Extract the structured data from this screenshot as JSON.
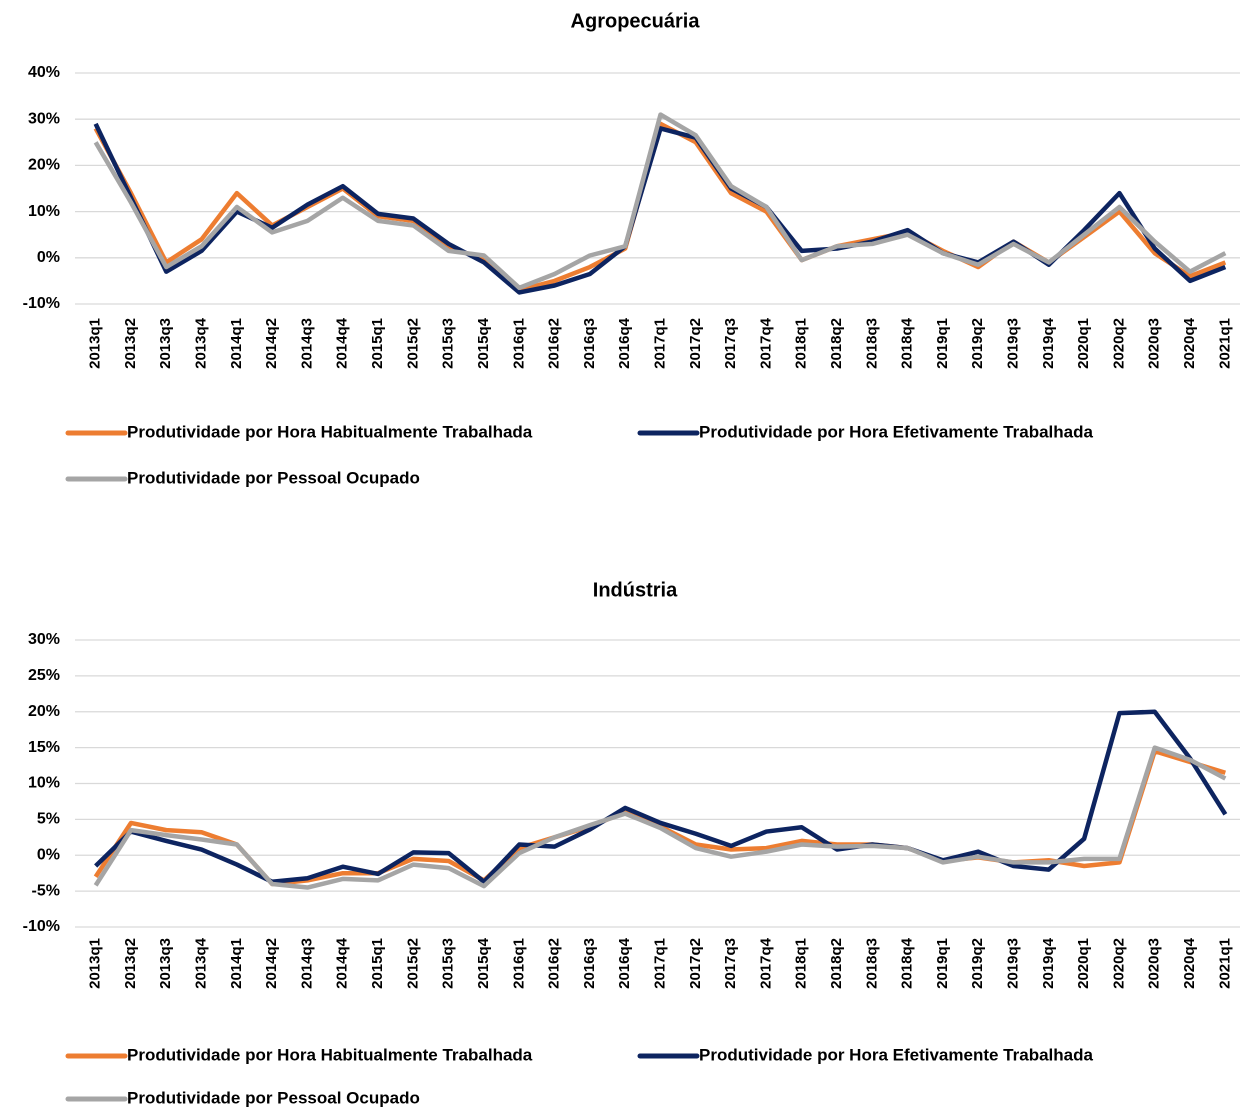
{
  "chart_data": [
    {
      "type": "line",
      "title": "Agropecuária",
      "categories": [
        "2013q1",
        "2013q2",
        "2013q3",
        "2013q4",
        "2014q1",
        "2014q2",
        "2014q3",
        "2014q4",
        "2015q1",
        "2015q2",
        "2015q3",
        "2015q4",
        "2016q1",
        "2016q2",
        "2016q3",
        "2016q4",
        "2017q1",
        "2017q2",
        "2017q3",
        "2017q4",
        "2018q1",
        "2018q2",
        "2018q3",
        "2018q4",
        "2019q1",
        "2019q2",
        "2019q3",
        "2019q4",
        "2020q1",
        "2020q2",
        "2020q3",
        "2020q4",
        "2021q1"
      ],
      "series": [
        {
          "name": "Produtividade por Hora Habitualmente Trabalhada",
          "color": "#ed7d31",
          "values": [
            28,
            14,
            -1,
            4,
            14,
            7,
            11,
            15,
            9,
            8,
            2,
            0,
            -7,
            -5,
            -2,
            2,
            29,
            25,
            14,
            10,
            -0.5,
            2.5,
            4,
            5.5,
            1.5,
            -2,
            3.5,
            -1,
            4.5,
            10,
            1,
            -4,
            -1
          ]
        },
        {
          "name": "Produtividade por Hora Efetivamente Trabalhada",
          "color": "#0d2460",
          "values": [
            29,
            13,
            -3,
            1.5,
            10,
            6.5,
            11.5,
            15.5,
            9.5,
            8.5,
            3,
            -1,
            -7.5,
            -6,
            -3.5,
            2.5,
            28,
            26,
            15,
            11,
            1.5,
            2,
            3.5,
            6,
            1,
            -1,
            3.5,
            -1.5,
            6,
            14,
            2,
            -5,
            -2
          ]
        },
        {
          "name": "Produtividade por Pessoal Ocupado",
          "color": "#a5a5a5",
          "values": [
            25,
            12,
            -2,
            2.5,
            11,
            5.5,
            8,
            13,
            8,
            7,
            1.5,
            0.5,
            -6.5,
            -3.5,
            0.5,
            2.5,
            31,
            26.5,
            15.5,
            11,
            -0.5,
            2.5,
            3,
            5,
            1,
            -1.5,
            3,
            -1,
            5,
            11,
            3.5,
            -3,
            1
          ]
        }
      ],
      "ylim": [
        -10,
        40
      ],
      "yticks": [
        {
          "value": -10,
          "label": "-10%"
        },
        {
          "value": 0,
          "label": "0%"
        },
        {
          "value": 10,
          "label": "10%"
        },
        {
          "value": 20,
          "label": "20%"
        },
        {
          "value": 30,
          "label": "30%"
        },
        {
          "value": 40,
          "label": "40%"
        }
      ],
      "grid": true
    },
    {
      "type": "line",
      "title": "Indústria",
      "categories": [
        "2013q1",
        "2013q2",
        "2013q3",
        "2013q4",
        "2014q1",
        "2014q2",
        "2014q3",
        "2014q4",
        "2015q1",
        "2015q2",
        "2015q3",
        "2015q4",
        "2016q1",
        "2016q2",
        "2016q3",
        "2016q4",
        "2017q1",
        "2017q2",
        "2017q3",
        "2017q4",
        "2018q1",
        "2018q2",
        "2018q3",
        "2018q4",
        "2019q1",
        "2019q2",
        "2019q3",
        "2019q4",
        "2020q1",
        "2020q2",
        "2020q3",
        "2020q4",
        "2021q1"
      ],
      "series": [
        {
          "name": "Produtividade por Hora Habitualmente Trabalhada",
          "color": "#ed7d31",
          "values": [
            -3,
            4.5,
            3.5,
            3.2,
            1.5,
            -4,
            -3.5,
            -2.5,
            -2.5,
            -0.5,
            -0.8,
            -3.5,
            1,
            2.5,
            4,
            6,
            4,
            1.5,
            0.8,
            1,
            2,
            1.5,
            1.5,
            1,
            -0.8,
            -0.3,
            -1,
            -0.7,
            -1.5,
            -1,
            14.5,
            13,
            11.5
          ]
        },
        {
          "name": "Produtividade por Hora Efetivamente Trabalhada",
          "color": "#0d2460",
          "values": [
            -1.5,
            3.3,
            2,
            0.8,
            -1.3,
            -3.7,
            -3.2,
            -1.6,
            -2.6,
            0.4,
            0.3,
            -3.7,
            1.5,
            1.2,
            3.6,
            6.6,
            4.5,
            3,
            1.3,
            3.3,
            3.9,
            0.8,
            1.5,
            1,
            -0.7,
            0.5,
            -1.5,
            -2,
            2.3,
            19.8,
            20,
            13.5,
            5.7
          ]
        },
        {
          "name": "Produtividade por Pessoal Ocupado",
          "color": "#a5a5a5",
          "values": [
            -4.2,
            3.5,
            2.8,
            2.2,
            1.5,
            -4,
            -4.5,
            -3.3,
            -3.5,
            -1.3,
            -1.8,
            -4.3,
            0.3,
            2.5,
            4.2,
            5.8,
            3.8,
            1,
            -0.2,
            0.5,
            1.5,
            1.2,
            1.3,
            1,
            -1,
            -0.2,
            -1,
            -1,
            -0.5,
            -0.5,
            15,
            13.3,
            10.7
          ]
        }
      ],
      "ylim": [
        -10,
        30
      ],
      "yticks": [
        {
          "value": -10,
          "label": "-10%"
        },
        {
          "value": -5,
          "label": "-5%"
        },
        {
          "value": 0,
          "label": "0%"
        },
        {
          "value": 5,
          "label": "5%"
        },
        {
          "value": 10,
          "label": "10%"
        },
        {
          "value": 15,
          "label": "15%"
        },
        {
          "value": 20,
          "label": "20%"
        },
        {
          "value": 25,
          "label": "25%"
        },
        {
          "value": 30,
          "label": "30%"
        }
      ],
      "grid": true
    }
  ]
}
